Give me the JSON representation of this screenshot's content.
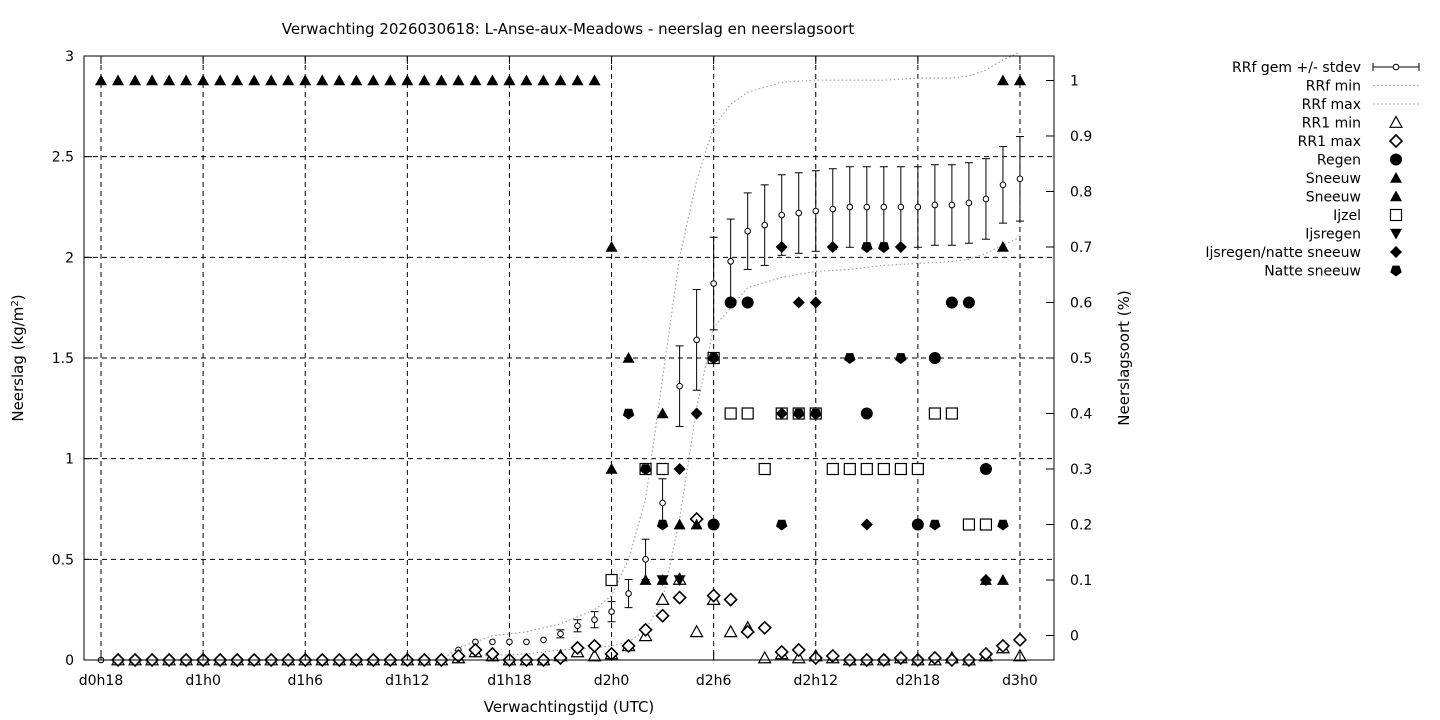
{
  "chart_data": {
    "type": "scatter",
    "title": "Verwachting 2026030618: L-Anse-aux-Meadows - neerslag en neerslagsoort",
    "xlabel": "Verwachtingstijd (UTC)",
    "ylabel": "Neerslag (kg/m",
    "ylabel_sup": "2",
    "ylabel_close": ")",
    "y2label": "Neerslagsoort (%)",
    "x_unit": "hours after forecast base 2026030618",
    "xlim": [
      -1,
      56
    ],
    "ylim": [
      0,
      3
    ],
    "y2lim": [
      -0.0441,
      1.0441
    ],
    "grid": true,
    "legend_position": "top-right, outside plot",
    "x_ticks": [
      {
        "x": 0,
        "label": "d0h18"
      },
      {
        "x": 6,
        "label": "d1h0"
      },
      {
        "x": 12,
        "label": "d1h6"
      },
      {
        "x": 18,
        "label": "d1h12"
      },
      {
        "x": 24,
        "label": "d1h18"
      },
      {
        "x": 30,
        "label": "d2h0"
      },
      {
        "x": 36,
        "label": "d2h6"
      },
      {
        "x": 42,
        "label": "d2h12"
      },
      {
        "x": 48,
        "label": "d2h18"
      },
      {
        "x": 54,
        "label": "d3h0"
      }
    ],
    "y_ticks": [
      {
        "v": 0,
        "label": "0"
      },
      {
        "v": 0.5,
        "label": "0.5"
      },
      {
        "v": 1,
        "label": "1"
      },
      {
        "v": 1.5,
        "label": "1.5"
      },
      {
        "v": 2,
        "label": "2"
      },
      {
        "v": 2.5,
        "label": "2.5"
      },
      {
        "v": 3,
        "label": "3"
      }
    ],
    "y2_ticks": [
      {
        "v": 0,
        "label": "0"
      },
      {
        "v": 0.1,
        "label": "0.1"
      },
      {
        "v": 0.2,
        "label": "0.2"
      },
      {
        "v": 0.3,
        "label": "0.3"
      },
      {
        "v": 0.4,
        "label": "0.4"
      },
      {
        "v": 0.5,
        "label": "0.5"
      },
      {
        "v": 0.6,
        "label": "0.6"
      },
      {
        "v": 0.7,
        "label": "0.7"
      },
      {
        "v": 0.8,
        "label": "0.8"
      },
      {
        "v": 0.9,
        "label": "0.9"
      },
      {
        "v": 1,
        "label": "1"
      }
    ],
    "legend": [
      {
        "key": "rrf",
        "label": "RRf gem +/- stdev",
        "symbol": "errorbar"
      },
      {
        "key": "rrfmin",
        "label": "RRf min",
        "symbol": "dotted-line"
      },
      {
        "key": "rrfmax",
        "label": "RRf max",
        "symbol": "dotted-line"
      },
      {
        "key": "rr1min",
        "label": "RR1 min",
        "symbol": "triangle-open"
      },
      {
        "key": "rr1max",
        "label": "RR1 max",
        "symbol": "diamond-open"
      },
      {
        "key": "regen",
        "label": "Regen",
        "symbol": "circle-filled"
      },
      {
        "key": "sneeuw1",
        "label": "Sneeuw",
        "symbol": "triangle-filled"
      },
      {
        "key": "sneeuw2",
        "label": "Sneeuw",
        "symbol": "triangle-filled"
      },
      {
        "key": "ijzel",
        "label": "Ijzel",
        "symbol": "square-open"
      },
      {
        "key": "ijsregen",
        "label": "Ijsregen",
        "symbol": "triangle-down-filled"
      },
      {
        "key": "ijsregennat",
        "label": "Ijsregen/natte sneeuw",
        "symbol": "diamond-filled"
      },
      {
        "key": "natte",
        "label": "Natte sneeuw",
        "symbol": "pentagon-filled"
      }
    ],
    "series": {
      "rrf_mean": {
        "x": [
          0,
          1,
          2,
          3,
          4,
          5,
          6,
          7,
          8,
          9,
          10,
          11,
          12,
          13,
          14,
          15,
          16,
          17,
          18,
          19,
          20,
          21,
          22,
          23,
          24,
          25,
          26,
          27,
          28,
          29,
          30,
          31,
          32,
          33,
          34,
          35,
          36,
          37,
          38,
          39,
          40,
          41,
          42,
          43,
          44,
          45,
          46,
          47,
          48,
          49,
          50,
          51,
          52,
          53,
          54
        ],
        "y": [
          0,
          0,
          0,
          0,
          0,
          0,
          0,
          0,
          0,
          0,
          0,
          0,
          0,
          0,
          0,
          0,
          0,
          0,
          0,
          0,
          0,
          0.05,
          0.09,
          0.09,
          0.09,
          0.09,
          0.1,
          0.13,
          0.17,
          0.2,
          0.24,
          0.33,
          0.5,
          0.78,
          1.36,
          1.59,
          1.87,
          1.98,
          2.13,
          2.16,
          2.21,
          2.22,
          2.23,
          2.24,
          2.25,
          2.25,
          2.25,
          2.25,
          2.25,
          2.26,
          2.26,
          2.27,
          2.29,
          2.36,
          2.39
        ],
        "stdev": [
          0,
          0,
          0,
          0,
          0,
          0,
          0,
          0,
          0,
          0,
          0,
          0,
          0,
          0,
          0,
          0,
          0,
          0,
          0,
          0,
          0,
          0,
          0,
          0,
          0,
          0,
          0,
          0.02,
          0.03,
          0.04,
          0.05,
          0.07,
          0.1,
          0.12,
          0.2,
          0.25,
          0.23,
          0.21,
          0.19,
          0.2,
          0.2,
          0.2,
          0.2,
          0.2,
          0.2,
          0.2,
          0.2,
          0.2,
          0.2,
          0.2,
          0.2,
          0.2,
          0.2,
          0.19,
          0.21
        ]
      },
      "rrf_min": {
        "x": [
          0,
          20,
          22,
          25,
          27,
          29,
          30,
          31,
          32,
          33,
          34,
          35,
          36,
          37,
          38,
          40,
          42,
          44,
          46,
          48,
          50,
          51,
          52,
          53,
          54
        ],
        "y": [
          0,
          0,
          0.02,
          0.03,
          0.05,
          0.06,
          0.07,
          0.09,
          0.15,
          0.3,
          0.7,
          1.25,
          1.65,
          1.75,
          1.85,
          1.9,
          1.93,
          1.94,
          1.96,
          1.97,
          1.98,
          1.99,
          2.02,
          2.06,
          2.1
        ]
      },
      "rrf_max": {
        "x": [
          0,
          20,
          21,
          23,
          25,
          27,
          29,
          30,
          31,
          32,
          33,
          34,
          35,
          36,
          37,
          38,
          40,
          42,
          44,
          46,
          48,
          50,
          51,
          52,
          53,
          54
        ],
        "y": [
          0,
          0,
          0.06,
          0.12,
          0.14,
          0.18,
          0.25,
          0.32,
          0.5,
          0.8,
          1.4,
          2.0,
          2.38,
          2.65,
          2.76,
          2.82,
          2.87,
          2.88,
          2.88,
          2.88,
          2.89,
          2.89,
          2.9,
          2.93,
          2.98,
          3.02
        ]
      },
      "rr1_min": {
        "x": [
          1,
          2,
          3,
          4,
          5,
          6,
          7,
          8,
          9,
          10,
          11,
          12,
          13,
          14,
          15,
          16,
          17,
          18,
          19,
          20,
          21,
          22,
          23,
          24,
          25,
          26,
          27,
          28,
          29,
          30,
          31,
          32,
          33,
          34,
          35,
          36,
          37,
          38,
          39,
          40,
          41,
          42,
          43,
          44,
          45,
          46,
          47,
          48,
          49,
          50,
          51,
          52,
          53,
          54
        ],
        "y": [
          0,
          0,
          0,
          0,
          0,
          0,
          0,
          0,
          0,
          0,
          0,
          0,
          0,
          0,
          0,
          0,
          0,
          0,
          0,
          0,
          0.01,
          0.04,
          0.02,
          0.0,
          0.0,
          0.0,
          0.02,
          0.04,
          0.02,
          0.03,
          0.07,
          0.12,
          0.3,
          0.4,
          0.14,
          0.3,
          0.14,
          0.16,
          0.01,
          0.03,
          0.01,
          0.02,
          0.01,
          0.0,
          0.0,
          0.0,
          0.01,
          0.0,
          0.0,
          0.01,
          0.0,
          0.02,
          0.06,
          0.02
        ]
      },
      "rr1_max": {
        "x": [
          1,
          2,
          3,
          4,
          5,
          6,
          7,
          8,
          9,
          10,
          11,
          12,
          13,
          14,
          15,
          16,
          17,
          18,
          19,
          20,
          21,
          22,
          23,
          24,
          25,
          26,
          27,
          28,
          29,
          30,
          31,
          32,
          33,
          34,
          35,
          36,
          37,
          38,
          39,
          40,
          41,
          42,
          43,
          44,
          45,
          46,
          47,
          48,
          49,
          50,
          51,
          52,
          53,
          54
        ],
        "y": [
          0,
          0,
          0,
          0,
          0,
          0,
          0,
          0,
          0,
          0,
          0,
          0,
          0,
          0,
          0,
          0,
          0,
          0,
          0,
          0,
          0.02,
          0.05,
          0.03,
          0.0,
          0.0,
          0.0,
          0.01,
          0.06,
          0.07,
          0.03,
          0.07,
          0.15,
          0.22,
          0.31,
          0.7,
          0.32,
          0.3,
          0.14,
          0.16,
          0.04,
          0.05,
          0.01,
          0.02,
          0.0,
          0.0,
          0.0,
          0.01,
          0.0,
          0.01,
          0.0,
          0.0,
          0.03,
          0.07,
          0.1
        ]
      },
      "regen": {
        "x": [
          36,
          37,
          38,
          45,
          48,
          49,
          50,
          51,
          52
        ],
        "y": [
          0.2,
          0.6,
          0.6,
          0.4,
          0.2,
          0.5,
          0.6,
          0.6,
          0.3
        ]
      },
      "sneeuw1": {
        "x": [
          0,
          1,
          2,
          3,
          4,
          5,
          6,
          7,
          8,
          9,
          10,
          11,
          12,
          13,
          14,
          15,
          16,
          17,
          18,
          19,
          20,
          21,
          22,
          23,
          24,
          25,
          26,
          27,
          28,
          29,
          30,
          30,
          31,
          32,
          33,
          33,
          34,
          35,
          53,
          53,
          54
        ],
        "y": [
          1,
          1,
          1,
          1,
          1,
          1,
          1,
          1,
          1,
          1,
          1,
          1,
          1,
          1,
          1,
          1,
          1,
          1,
          1,
          1,
          1,
          1,
          1,
          1,
          1,
          1,
          1,
          1,
          1,
          1,
          0.7,
          0.3,
          0.5,
          0.1,
          0.4,
          0.1,
          0.2,
          0.2,
          0.7,
          1,
          1
        ]
      },
      "sneeuw2": {
        "x": [
          52,
          53
        ],
        "y": [
          0.1,
          0.1
        ]
      },
      "ijzel": {
        "x": [
          30,
          32,
          33,
          36,
          37,
          38,
          39,
          40,
          41,
          42,
          43,
          44,
          45,
          46,
          47,
          48,
          49,
          50,
          51,
          52
        ],
        "y": [
          0.1,
          0.3,
          0.3,
          0.5,
          0.4,
          0.4,
          0.3,
          0.4,
          0.4,
          0.4,
          0.3,
          0.3,
          0.3,
          0.3,
          0.3,
          0.3,
          0.4,
          0.4,
          0.2,
          0.2
        ]
      },
      "ijsregen": {
        "x": [
          33,
          34
        ],
        "y": [
          0.1,
          0.1
        ]
      },
      "ijsregennat": {
        "x": [
          34,
          35,
          36,
          40,
          40,
          41,
          42,
          43,
          45,
          47,
          52
        ],
        "y": [
          0.3,
          0.4,
          0.5,
          0.4,
          0.7,
          0.6,
          0.6,
          0.7,
          0.2,
          0.7,
          0.1
        ]
      },
      "natte": {
        "x": [
          31,
          32,
          33,
          36,
          40,
          41,
          42,
          44,
          45,
          46,
          47,
          48,
          49,
          53
        ],
        "y": [
          0.4,
          0.3,
          0.2,
          0.5,
          0.2,
          0.4,
          0.4,
          0.5,
          0.7,
          0.7,
          0.5,
          0.2,
          0.2,
          0.2
        ]
      }
    }
  }
}
